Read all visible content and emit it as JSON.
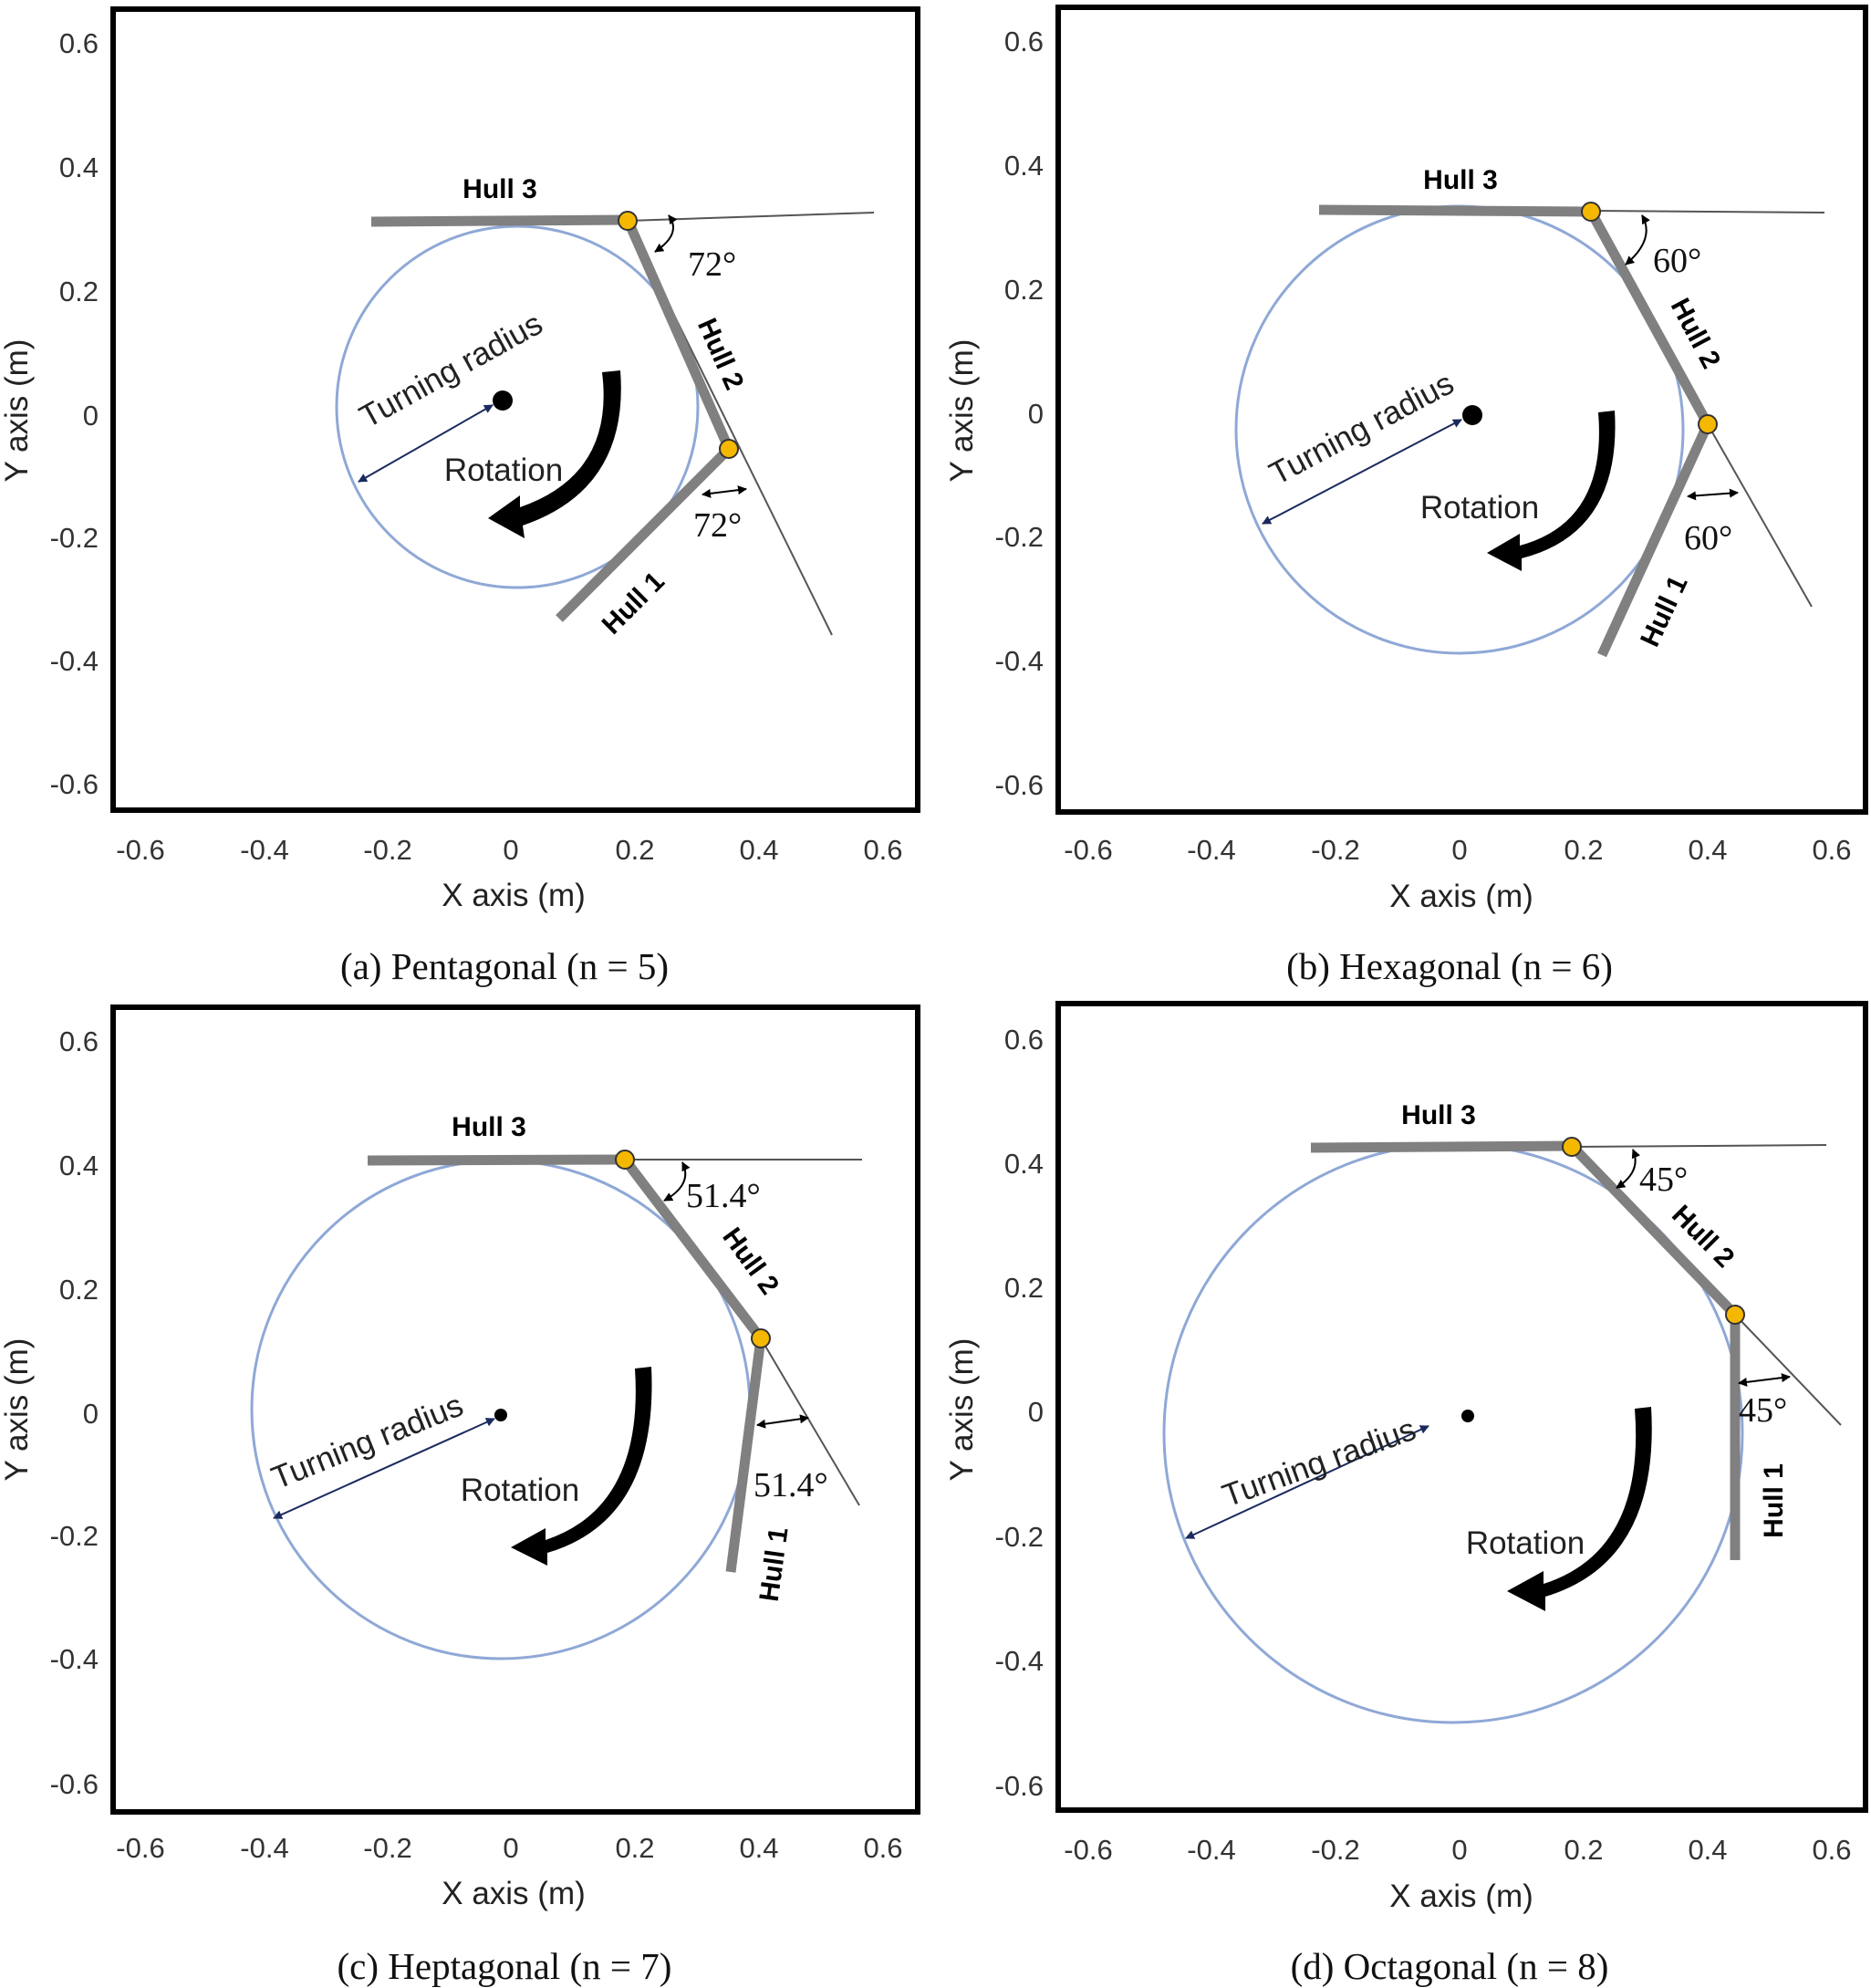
{
  "figure": {
    "axis_labels": {
      "x": "X axis (m)",
      "y": "Y axis (m)"
    },
    "x_ticks": [
      "-0.6",
      "-0.4",
      "-0.2",
      "0",
      "0.2",
      "0.4",
      "0.6"
    ],
    "y_ticks": [
      "0.6",
      "0.4",
      "0.2",
      "0",
      "-0.2",
      "-0.4",
      "-0.6"
    ],
    "labels": {
      "hull1": "Hull 1",
      "hull2": "Hull 2",
      "hull3": "Hull 3",
      "turning_radius": "Turning radius",
      "rotation": "Rotation"
    },
    "colors": {
      "circle": "#8fa8d6",
      "hull": "#808080",
      "joint": "#f5b800",
      "radius_arrow": "#1a2a5e"
    },
    "panels": [
      {
        "id": "a",
        "caption": "(a) Pentagonal (n = 5)",
        "n": 5,
        "angle_label": "72°",
        "center": [
          -0.01,
          0.02
        ],
        "circle_center": [
          0.01,
          0.01
        ],
        "radius": 0.29,
        "joints": [
          [
            0.19,
            0.31
          ],
          [
            0.35,
            -0.06
          ]
        ],
        "hull3": [
          [
            -0.23,
            0.31
          ],
          [
            0.19,
            0.31
          ]
        ],
        "hull2": [
          [
            0.19,
            0.31
          ],
          [
            0.35,
            -0.06
          ]
        ],
        "hull1": [
          [
            0.35,
            -0.06
          ],
          [
            0.08,
            -0.33
          ]
        ]
      },
      {
        "id": "b",
        "caption": "(b) Hexagonal (n = 6)",
        "n": 6,
        "angle_label": "60°",
        "center": [
          0.02,
          0.0
        ],
        "circle_center": [
          0.0,
          -0.03
        ],
        "radius": 0.36,
        "joints": [
          [
            0.21,
            0.32
          ],
          [
            0.4,
            -0.02
          ]
        ],
        "hull3": [
          [
            -0.22,
            0.32
          ],
          [
            0.21,
            0.32
          ]
        ],
        "hull2": [
          [
            0.21,
            0.32
          ],
          [
            0.4,
            -0.02
          ]
        ],
        "hull1": [
          [
            0.4,
            -0.02
          ],
          [
            0.23,
            -0.39
          ]
        ]
      },
      {
        "id": "c",
        "caption": "(c) Heptagonal (n = 7)",
        "n": 7,
        "angle_label": "51.4°",
        "center": [
          -0.02,
          -0.01
        ],
        "circle_center": [
          -0.01,
          -0.01
        ],
        "radius": 0.4,
        "joints": [
          [
            0.18,
            0.4
          ],
          [
            0.4,
            0.12
          ]
        ],
        "hull3": [
          [
            -0.23,
            0.4
          ],
          [
            0.18,
            0.4
          ]
        ],
        "hull2": [
          [
            0.18,
            0.4
          ],
          [
            0.4,
            0.12
          ]
        ],
        "hull1": [
          [
            0.4,
            0.12
          ],
          [
            0.35,
            -0.26
          ]
        ]
      },
      {
        "id": "d",
        "caption": "(d) Octagonal (n = 8)",
        "n": 8,
        "angle_label": "45°",
        "center": [
          0.01,
          -0.01
        ],
        "circle_center": [
          -0.01,
          -0.04
        ],
        "radius": 0.47,
        "joints": [
          [
            0.18,
            0.42
          ],
          [
            0.44,
            0.15
          ]
        ],
        "hull3": [
          [
            -0.24,
            0.42
          ],
          [
            0.18,
            0.42
          ]
        ],
        "hull2": [
          [
            0.18,
            0.42
          ],
          [
            0.44,
            0.15
          ]
        ],
        "hull1": [
          [
            0.44,
            0.15
          ],
          [
            0.44,
            -0.24
          ]
        ]
      }
    ]
  }
}
